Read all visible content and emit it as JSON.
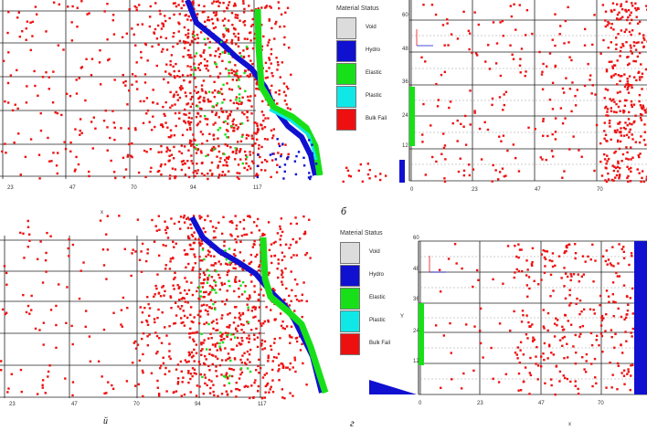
{
  "legend": {
    "title": "Material Status",
    "items": [
      {
        "label": "Void",
        "color": "#dcdcdc"
      },
      {
        "label": "Hydro",
        "color": "#1010d0"
      },
      {
        "label": "Elastic",
        "color": "#18e018"
      },
      {
        "label": "Plastic",
        "color": "#10e8e8"
      },
      {
        "label": "Bulk Fail",
        "color": "#ee1010"
      }
    ]
  },
  "panels": {
    "a": {
      "x_ticks": [
        "23",
        "47",
        "70",
        "94",
        "117"
      ]
    },
    "b": {
      "caption": "б",
      "x_ticks": [
        "0",
        "23",
        "47",
        "70"
      ],
      "y_ticks": [
        "60",
        "48",
        "36",
        "24",
        "12"
      ]
    },
    "c": {
      "x_ticks": [
        "23",
        "47",
        "70",
        "94",
        "117"
      ],
      "top_mark": "x"
    },
    "d": {
      "caption": "г",
      "x_ticks": [
        "0",
        "23",
        "47",
        "70"
      ],
      "y_ticks": [
        "60",
        "48",
        "36",
        "24",
        "12"
      ],
      "y_label": "Y",
      "bottom_mark": "x"
    },
    "c_caption": "й"
  },
  "colors": {
    "fail": "#ee1010",
    "hydro": "#1010d0",
    "elastic": "#18e018",
    "plastic": "#10e8e8",
    "grid": "#222222"
  }
}
